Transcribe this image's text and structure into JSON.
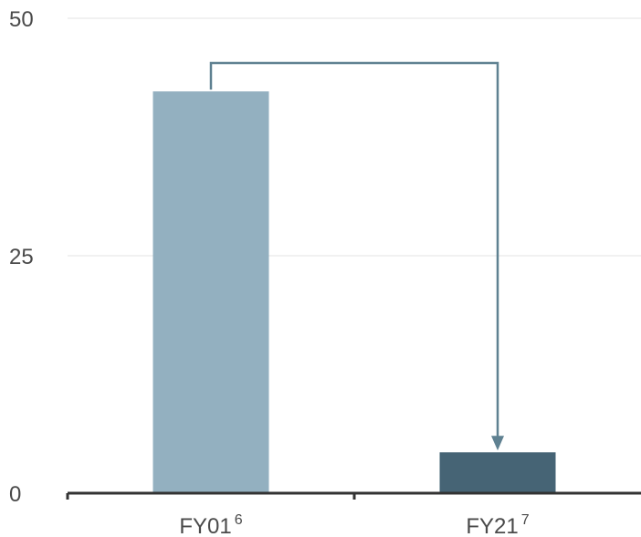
{
  "chart_data": {
    "type": "bar",
    "categories": [
      "FY01",
      "FY21"
    ],
    "category_superscripts": [
      "6",
      "7"
    ],
    "values": [
      42.3,
      4.3
    ],
    "ylim": [
      0,
      50
    ],
    "yticks": [
      0,
      25,
      50
    ],
    "grid": true,
    "colors": {
      "bars": [
        "#93b0c0",
        "#466475"
      ],
      "arrow": "#5f8191",
      "grid": "#e3e3e3",
      "axis": "#333333"
    },
    "annotation": {
      "type": "bracket-arrow",
      "from_category": 0,
      "to_category": 1
    }
  }
}
